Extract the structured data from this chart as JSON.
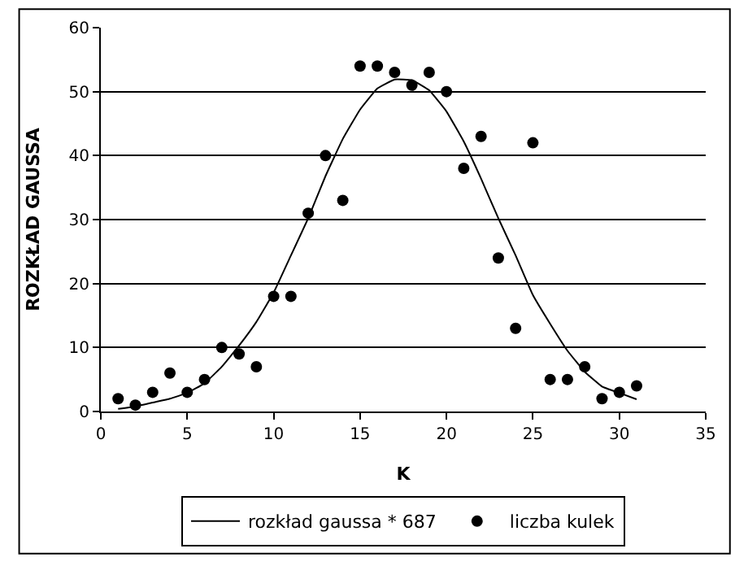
{
  "chart_data": {
    "type": "scatter",
    "xlabel": "K",
    "ylabel": "ROZKŁAD GAUSSA",
    "xlim": [
      0,
      35
    ],
    "xticks": [
      0,
      5,
      10,
      15,
      20,
      25,
      30,
      35
    ],
    "ylim": [
      0,
      60
    ],
    "yticks": [
      0,
      10,
      20,
      30,
      40,
      50,
      60
    ],
    "grid": "y",
    "legend": "bottom",
    "series": [
      {
        "name": "rozkład gaussa * 687",
        "type": "line",
        "color": "#000000",
        "marker": "none",
        "line_style": "solid",
        "x": [
          1,
          2,
          3,
          4,
          5,
          6,
          7,
          8,
          9,
          10,
          11,
          12,
          13,
          14,
          15,
          16,
          17,
          18,
          19,
          20,
          21,
          22,
          23,
          24,
          25,
          26,
          27,
          28,
          29,
          30,
          31
        ],
        "values": [
          0.4,
          0.8,
          1.4,
          2,
          2.9,
          4.4,
          7,
          10.3,
          14,
          18.6,
          24.4,
          30.2,
          36.8,
          42.6,
          47.2,
          50.5,
          51.9,
          51.8,
          50.2,
          46.9,
          42.2,
          36.4,
          30.2,
          24.4,
          18.2,
          13.7,
          9.5,
          6.2,
          3.9,
          2.9,
          1.9
        ]
      },
      {
        "name": "liczba kulek",
        "color": "#000000",
        "marker": "circle",
        "x": [
          1,
          2,
          3,
          4,
          5,
          6,
          7,
          8,
          9,
          10,
          11,
          12,
          13,
          14,
          15,
          16,
          17,
          18,
          19,
          20,
          21,
          22,
          23,
          24,
          25,
          26,
          27,
          28,
          29,
          30,
          31
        ],
        "values": [
          2,
          1,
          3,
          6,
          3,
          5,
          10,
          9,
          7,
          18,
          18,
          31,
          40,
          33,
          54,
          54,
          53,
          51,
          53,
          50,
          38,
          43,
          24,
          13,
          42,
          5,
          5,
          7,
          2,
          3,
          4
        ]
      }
    ]
  }
}
